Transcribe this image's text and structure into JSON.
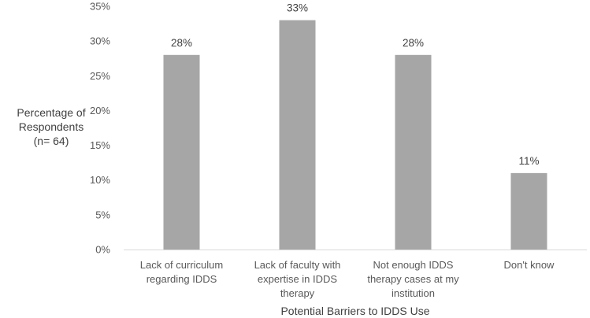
{
  "chart_data": {
    "type": "bar",
    "categories": [
      [
        "Lack of curriculum",
        "regarding IDDS"
      ],
      [
        "Lack of faculty with",
        "expertise in IDDS",
        "therapy"
      ],
      [
        "Not enough IDDS",
        "therapy cases at my",
        "institution"
      ],
      [
        "Don't know"
      ]
    ],
    "values": [
      28,
      33,
      28,
      11
    ],
    "data_labels": [
      "28%",
      "33%",
      "28%",
      "11%"
    ],
    "title": "",
    "xlabel": "Potential Barriers to IDDS Use",
    "ylabel": [
      "Percentage of",
      "Respondents",
      "(n= 64)"
    ],
    "ylim": [
      0,
      35
    ],
    "yticks": [
      0,
      5,
      10,
      15,
      20,
      25,
      30,
      35
    ],
    "ytick_labels": [
      "0%",
      "5%",
      "10%",
      "15%",
      "20%",
      "25%",
      "30%",
      "35%"
    ],
    "grid": false,
    "bar_color": "#a6a6a6"
  }
}
